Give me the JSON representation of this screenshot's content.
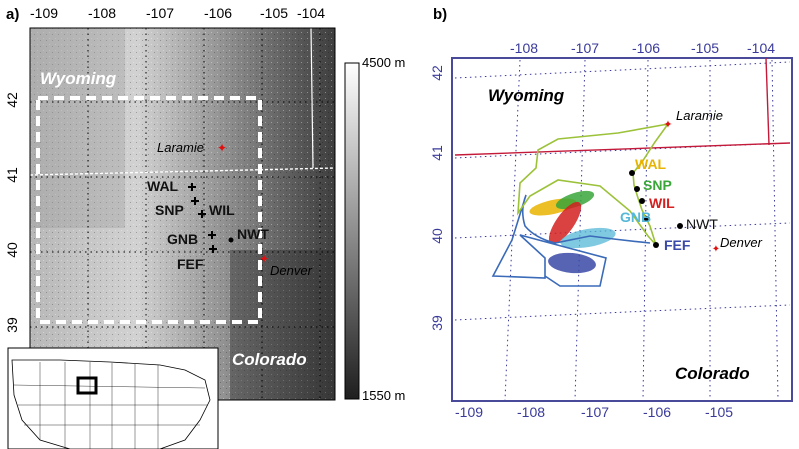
{
  "panel_a": {
    "label": "a)",
    "top_ticks": [
      "-109",
      "-108",
      "-107",
      "-106",
      "-105",
      "-104"
    ],
    "lat_ticks": [
      "42",
      "41",
      "40",
      "39"
    ],
    "states": {
      "north": "Wyoming",
      "south": "Colorado"
    },
    "cities": [
      "Laramie",
      "Denver"
    ],
    "sites": [
      "WAL",
      "SNP",
      "WIL",
      "GNB",
      "NWT",
      "FEF"
    ],
    "colorbar": {
      "max_label": "4500 m",
      "min_label": "1550 m"
    },
    "colors": {
      "terrain_light": "#d8d8d8",
      "terrain_dark": "#3a3a3a",
      "city_marker": "#e01010"
    }
  },
  "panel_b": {
    "label": "b)",
    "top_ticks": [
      "-108",
      "-107",
      "-106",
      "-105",
      "-104"
    ],
    "bottom_ticks": [
      "-109",
      "-108",
      "-107",
      "-106",
      "-105"
    ],
    "lat_ticks": [
      "42",
      "41",
      "40",
      "39"
    ],
    "states": {
      "north": "Wyoming",
      "south": "Colorado"
    },
    "cities": [
      "Laramie",
      "Denver"
    ],
    "sites": [
      {
        "name": "WAL",
        "color": "#e8b400"
      },
      {
        "name": "SNP",
        "color": "#3aa63a"
      },
      {
        "name": "WIL",
        "color": "#d42020"
      },
      {
        "name": "GNB",
        "color": "#55b8d8"
      },
      {
        "name": "NWT",
        "color": "#111111"
      },
      {
        "name": "FEF",
        "color": "#3a4aa8"
      }
    ],
    "colors": {
      "frame": "#4a4a9a",
      "border_line": "#c41a3a",
      "track_green": "#9cc23a",
      "track_blue": "#3a6ab8"
    }
  }
}
